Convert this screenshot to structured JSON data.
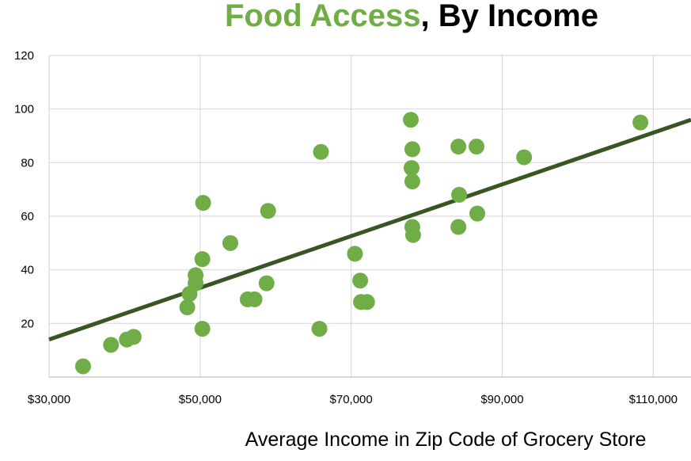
{
  "chart_data": {
    "type": "scatter",
    "title": {
      "highlight": "Food Access",
      "rest": ", By Income"
    },
    "xlabel": "Average Income in Zip Code of Grocery Store",
    "ylabel": "",
    "xlim": [
      30000,
      115000
    ],
    "ylim": [
      0,
      120
    ],
    "x_ticks": [
      30000,
      50000,
      70000,
      90000,
      110000
    ],
    "x_tick_labels": [
      "$30,000",
      "$50,000",
      "$70,000",
      "$90,000",
      "$110,000"
    ],
    "y_ticks": [
      20,
      40,
      60,
      80,
      100,
      120
    ],
    "y_tick_labels": [
      "20",
      "40",
      "60",
      "80",
      "100",
      "120"
    ],
    "grid": true,
    "legend": "none",
    "point_color": "#70ad47",
    "trend_color": "#375623",
    "title_accent_color": "#70ad47",
    "trendline": {
      "x": [
        30000,
        115000
      ],
      "y": [
        14,
        96
      ]
    },
    "points": [
      {
        "x": 34500,
        "y": 4
      },
      {
        "x": 38200,
        "y": 12
      },
      {
        "x": 40300,
        "y": 14
      },
      {
        "x": 41200,
        "y": 15
      },
      {
        "x": 48300,
        "y": 26
      },
      {
        "x": 48600,
        "y": 31
      },
      {
        "x": 49400,
        "y": 35
      },
      {
        "x": 49400,
        "y": 38
      },
      {
        "x": 50300,
        "y": 18
      },
      {
        "x": 50300,
        "y": 44
      },
      {
        "x": 50400,
        "y": 65
      },
      {
        "x": 54000,
        "y": 50
      },
      {
        "x": 56300,
        "y": 29
      },
      {
        "x": 57200,
        "y": 29
      },
      {
        "x": 58800,
        "y": 35
      },
      {
        "x": 59000,
        "y": 62
      },
      {
        "x": 65800,
        "y": 18
      },
      {
        "x": 66000,
        "y": 84
      },
      {
        "x": 70500,
        "y": 46
      },
      {
        "x": 71200,
        "y": 36
      },
      {
        "x": 71300,
        "y": 28
      },
      {
        "x": 72100,
        "y": 28
      },
      {
        "x": 77900,
        "y": 96
      },
      {
        "x": 78100,
        "y": 85
      },
      {
        "x": 78000,
        "y": 78
      },
      {
        "x": 78100,
        "y": 73
      },
      {
        "x": 78100,
        "y": 56
      },
      {
        "x": 78200,
        "y": 53
      },
      {
        "x": 84200,
        "y": 86
      },
      {
        "x": 84300,
        "y": 68
      },
      {
        "x": 84200,
        "y": 56
      },
      {
        "x": 86600,
        "y": 86
      },
      {
        "x": 86700,
        "y": 61
      },
      {
        "x": 92900,
        "y": 82
      },
      {
        "x": 108300,
        "y": 95
      }
    ]
  }
}
